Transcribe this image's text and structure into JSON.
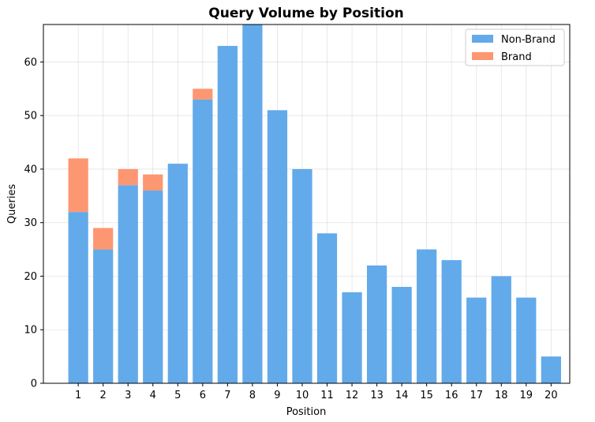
{
  "colors": {
    "non_brand": "#62aaea",
    "brand": "#fd9772"
  },
  "chart_data": {
    "type": "bar",
    "stacked": true,
    "title": "Query Volume by Position",
    "xlabel": "Position",
    "ylabel": "Queries",
    "categories": [
      "1",
      "2",
      "3",
      "4",
      "5",
      "6",
      "7",
      "8",
      "9",
      "10",
      "11",
      "12",
      "13",
      "14",
      "15",
      "16",
      "17",
      "18",
      "19",
      "20"
    ],
    "series": [
      {
        "name": "Non-Brand",
        "values": [
          32,
          25,
          37,
          36,
          41,
          53,
          63,
          67,
          51,
          40,
          28,
          17,
          22,
          18,
          25,
          23,
          16,
          20,
          16,
          5
        ]
      },
      {
        "name": "Brand",
        "values": [
          10,
          4,
          3,
          3,
          0,
          2,
          0,
          0,
          0,
          0,
          0,
          0,
          0,
          0,
          0,
          0,
          0,
          0,
          0,
          0
        ]
      }
    ],
    "ylim": [
      0,
      67
    ],
    "yticks": [
      0,
      10,
      20,
      30,
      40,
      50,
      60
    ],
    "grid": true,
    "legend_position": "top-right"
  }
}
